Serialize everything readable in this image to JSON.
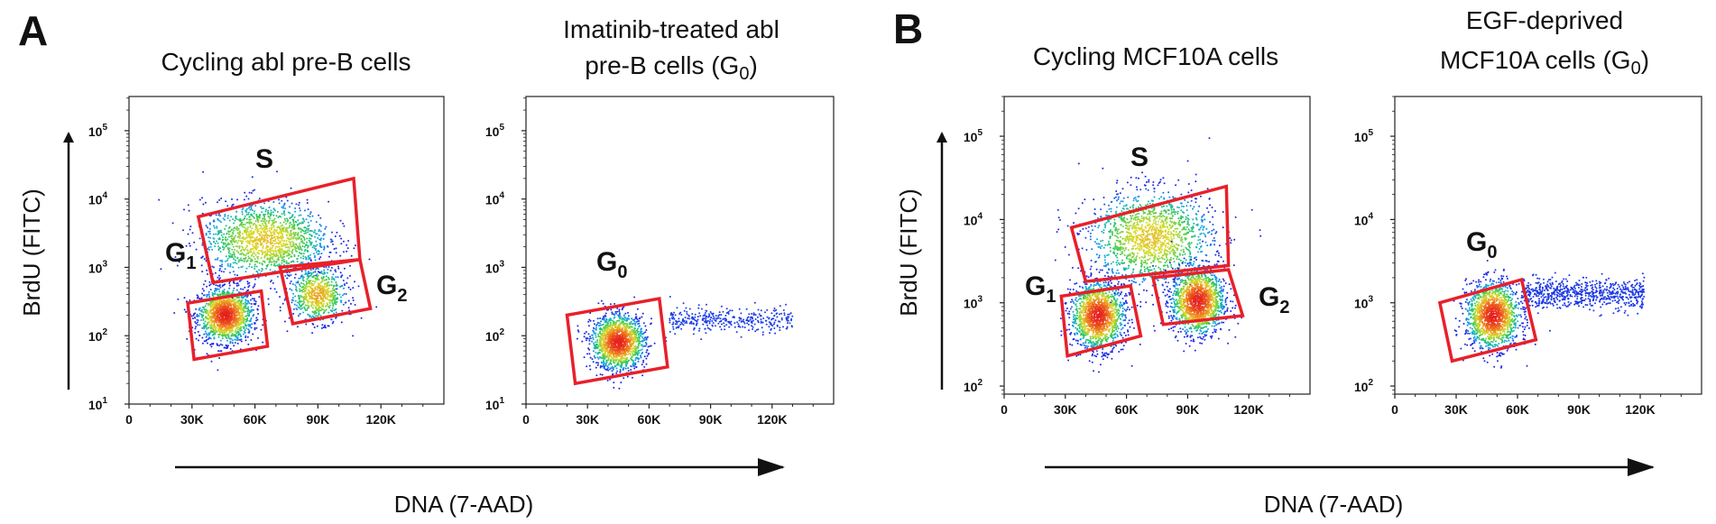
{
  "figure": {
    "panel_A_label": "A",
    "panel_B_label": "B",
    "x_axis_label": "DNA (7-AAD)",
    "y_axis_label": "BrdU (FITC)",
    "x_tick_labels": [
      "0",
      "30K",
      "60K",
      "90K",
      "120K"
    ],
    "y_tick_base": "10",
    "plots": [
      {
        "title_line1": "Cycling abl pre-B cells",
        "title_line2": "",
        "title_sub": "",
        "title_tail": "",
        "y_tick_exponents": [
          "1",
          "2",
          "3",
          "4",
          "5"
        ],
        "gates": [
          {
            "name": "S",
            "sub": ""
          },
          {
            "name": "G",
            "sub": "1"
          },
          {
            "name": "G",
            "sub": "2"
          }
        ]
      },
      {
        "title_line1": "Imatinib-treated abl",
        "title_line2": "pre-B cells (G",
        "title_sub": "0",
        "title_tail": ")",
        "y_tick_exponents": [
          "1",
          "2",
          "3",
          "4",
          "5"
        ],
        "gates": [
          {
            "name": "G",
            "sub": "0"
          }
        ]
      },
      {
        "title_line1": "Cycling MCF10A cells",
        "title_line2": "",
        "title_sub": "",
        "title_tail": "",
        "y_tick_exponents": [
          "2",
          "3",
          "4",
          "5"
        ],
        "gates": [
          {
            "name": "S",
            "sub": ""
          },
          {
            "name": "G",
            "sub": "1"
          },
          {
            "name": "G",
            "sub": "2"
          }
        ]
      },
      {
        "title_line1": "EGF-deprived",
        "title_line2": "MCF10A cells (G",
        "title_sub": "0",
        "title_tail": ")",
        "y_tick_exponents": [
          "2",
          "3",
          "4",
          "5"
        ],
        "gates": [
          {
            "name": "G",
            "sub": "0"
          }
        ]
      }
    ]
  },
  "chart_data": [
    {
      "type": "scatter",
      "title": "Cycling abl pre-B cells",
      "xlabel": "DNA (7-AAD)",
      "ylabel": "BrdU (FITC)",
      "xlim": [
        0,
        150000
      ],
      "ylim": [
        10,
        316228
      ],
      "yscale": "log",
      "xticks": [
        0,
        30000,
        60000,
        90000,
        120000
      ],
      "yticks": [
        10,
        100,
        1000,
        10000,
        100000
      ],
      "gates": [
        {
          "label": "S",
          "polygon": [
            [
              33000,
              5500
            ],
            [
              107000,
              20000
            ],
            [
              110000,
              1300
            ],
            [
              40000,
              600
            ]
          ]
        },
        {
          "label": "G1",
          "polygon": [
            [
              28000,
              300
            ],
            [
              63000,
              450
            ],
            [
              66000,
              70
            ],
            [
              31000,
              45
            ]
          ]
        },
        {
          "label": "G2",
          "polygon": [
            [
              72000,
              1000
            ],
            [
              110000,
              1300
            ],
            [
              115000,
              250
            ],
            [
              78000,
              150
            ]
          ]
        }
      ],
      "populations": [
        {
          "label": "G1",
          "center": [
            46000,
            200
          ],
          "count_relative": "high"
        },
        {
          "label": "S",
          "center": [
            65000,
            2500
          ],
          "count_relative": "high"
        },
        {
          "label": "G2",
          "center": [
            90000,
            400
          ],
          "count_relative": "medium"
        }
      ]
    },
    {
      "type": "scatter",
      "title": "Imatinib-treated abl pre-B cells (G0)",
      "xlabel": "DNA (7-AAD)",
      "ylabel": "BrdU (FITC)",
      "xlim": [
        0,
        150000
      ],
      "ylim": [
        10,
        316228
      ],
      "yscale": "log",
      "xticks": [
        0,
        30000,
        60000,
        90000,
        120000
      ],
      "yticks": [
        10,
        100,
        1000,
        10000,
        100000
      ],
      "gates": [
        {
          "label": "G0",
          "polygon": [
            [
              20000,
              200
            ],
            [
              65000,
              350
            ],
            [
              69000,
              35
            ],
            [
              24000,
              20
            ]
          ]
        }
      ],
      "populations": [
        {
          "label": "G0",
          "center": [
            45000,
            80
          ],
          "count_relative": "high"
        },
        {
          "label": "tail",
          "center": [
            100000,
            170
          ],
          "count_relative": "low"
        }
      ]
    },
    {
      "type": "scatter",
      "title": "Cycling MCF10A cells",
      "xlabel": "DNA (7-AAD)",
      "ylabel": "BrdU (FITC)",
      "xlim": [
        0,
        150000
      ],
      "ylim": [
        80,
        300000
      ],
      "yscale": "log",
      "xticks": [
        0,
        30000,
        60000,
        90000,
        120000
      ],
      "yticks": [
        100,
        1000,
        10000,
        100000
      ],
      "gates": [
        {
          "label": "S",
          "polygon": [
            [
              33000,
              8000
            ],
            [
              109000,
              25000
            ],
            [
              110000,
              2800
            ],
            [
              40000,
              1800
            ]
          ]
        },
        {
          "label": "G1",
          "polygon": [
            [
              28000,
              1200
            ],
            [
              62000,
              1600
            ],
            [
              67000,
              400
            ],
            [
              31000,
              230
            ]
          ]
        },
        {
          "label": "G2",
          "polygon": [
            [
              73000,
              2000
            ],
            [
              110000,
              2500
            ],
            [
              117000,
              700
            ],
            [
              78000,
              550
            ]
          ]
        }
      ],
      "populations": [
        {
          "label": "G1",
          "center": [
            46000,
            700
          ],
          "count_relative": "high"
        },
        {
          "label": "S",
          "center": [
            72000,
            6000
          ],
          "count_relative": "high"
        },
        {
          "label": "G2",
          "center": [
            95000,
            1050
          ],
          "count_relative": "high"
        }
      ]
    },
    {
      "type": "scatter",
      "title": "EGF-deprived MCF10A cells (G0)",
      "xlabel": "DNA (7-AAD)",
      "ylabel": "BrdU (FITC)",
      "xlim": [
        0,
        150000
      ],
      "ylim": [
        80,
        300000
      ],
      "yscale": "log",
      "xticks": [
        0,
        30000,
        60000,
        90000,
        120000
      ],
      "yticks": [
        100,
        1000,
        10000,
        100000
      ],
      "gates": [
        {
          "label": "G0",
          "polygon": [
            [
              22000,
              1000
            ],
            [
              62000,
              1900
            ],
            [
              69000,
              360
            ],
            [
              28000,
              200
            ]
          ]
        }
      ],
      "populations": [
        {
          "label": "G0",
          "center": [
            48000,
            700
          ],
          "count_relative": "high"
        },
        {
          "label": "tail",
          "center": [
            92000,
            1300
          ],
          "count_relative": "medium"
        }
      ]
    }
  ]
}
